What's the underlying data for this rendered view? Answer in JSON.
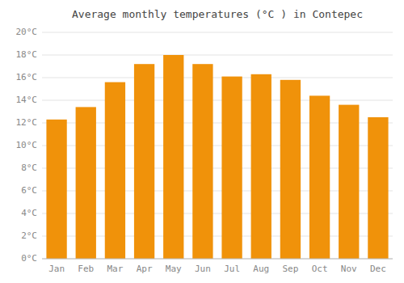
{
  "chart_data": {
    "type": "bar",
    "title": "Average monthly temperatures (°C ) in Contepec",
    "categories": [
      "Jan",
      "Feb",
      "Mar",
      "Apr",
      "May",
      "Jun",
      "Jul",
      "Aug",
      "Sep",
      "Oct",
      "Nov",
      "Dec"
    ],
    "values": [
      12.3,
      13.4,
      15.6,
      17.2,
      18.0,
      17.2,
      16.1,
      16.3,
      15.8,
      14.4,
      13.6,
      12.5
    ],
    "color": "#F0920A",
    "ylim": [
      0,
      20
    ],
    "yticks": [
      {
        "value": 0,
        "label": "0°C"
      },
      {
        "value": 2,
        "label": "2°C"
      },
      {
        "value": 4,
        "label": "4°C"
      },
      {
        "value": 6,
        "label": "6°C"
      },
      {
        "value": 8,
        "label": "8°C"
      },
      {
        "value": 10,
        "label": "10°C"
      },
      {
        "value": 12,
        "label": "12°C"
      },
      {
        "value": 14,
        "label": "14°C"
      },
      {
        "value": 16,
        "label": "16°C"
      },
      {
        "value": 18,
        "label": "18°C"
      },
      {
        "value": 20,
        "label": "20°C"
      }
    ],
    "grid": true
  }
}
